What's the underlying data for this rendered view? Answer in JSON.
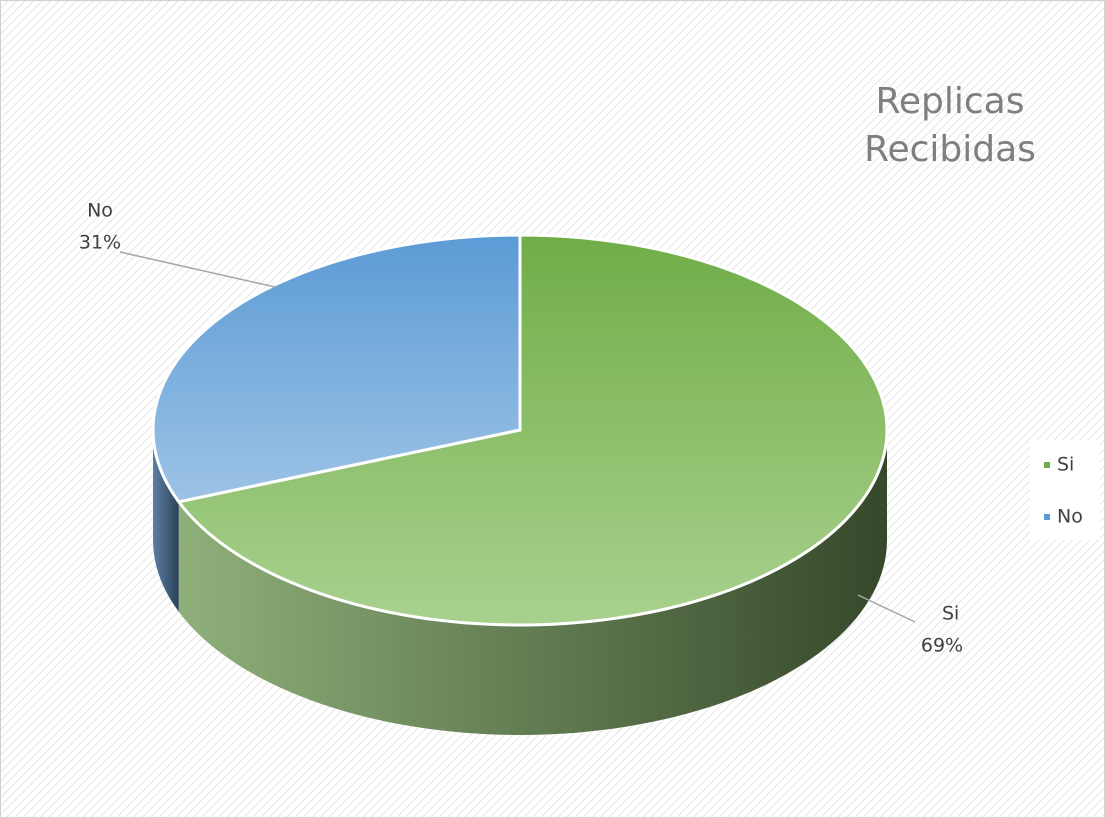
{
  "chart_data": {
    "type": "pie3d",
    "title": "Replicas Recibidas",
    "categories": [
      "Si",
      "No"
    ],
    "values": [
      69,
      31
    ],
    "value_labels": [
      "69%",
      "31%"
    ],
    "colors": [
      "#70ad47",
      "#5b9bd5"
    ],
    "legend": "right"
  }
}
